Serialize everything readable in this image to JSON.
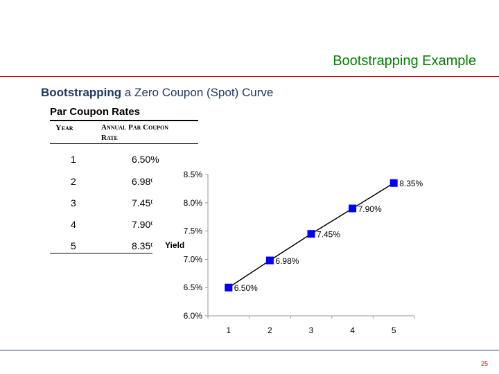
{
  "slide": {
    "title": "Bootstrapping Example",
    "subtitle_bold": "Bootstrapping",
    "subtitle_rest": " a Zero Coupon (Spot) Curve",
    "page_number": "25"
  },
  "table": {
    "title": "Par Coupon Rates",
    "header_year": "Year",
    "header_rate_line1": "Annual Par Coupon",
    "header_rate_line2": "Rate",
    "rows": [
      {
        "year": "1",
        "rate": "6.50%"
      },
      {
        "year": "2",
        "rate": "6.98%"
      },
      {
        "year": "3",
        "rate": "7.45%"
      },
      {
        "year": "4",
        "rate": "7.90%"
      },
      {
        "year": "5",
        "rate": "8.35%"
      }
    ]
  },
  "chart_data": {
    "type": "line",
    "x": [
      1,
      2,
      3,
      4,
      5
    ],
    "values": [
      6.5,
      6.98,
      7.45,
      7.9,
      8.35
    ],
    "data_labels": [
      "6.50%",
      "6.98%",
      "7.45%",
      "7.90%",
      "8.35%"
    ],
    "ylabel": "Yield",
    "xlabel": "",
    "ylim": [
      6.0,
      8.5
    ],
    "xlim": [
      0.5,
      5.5
    ],
    "y_ticks": [
      "6.0%",
      "6.5%",
      "7.0%",
      "7.5%",
      "8.0%",
      "8.5%"
    ],
    "x_ticks": [
      "1",
      "2",
      "3",
      "4",
      "5"
    ],
    "grid": false,
    "line_color": "#000000",
    "marker_color": "#0000ff"
  }
}
